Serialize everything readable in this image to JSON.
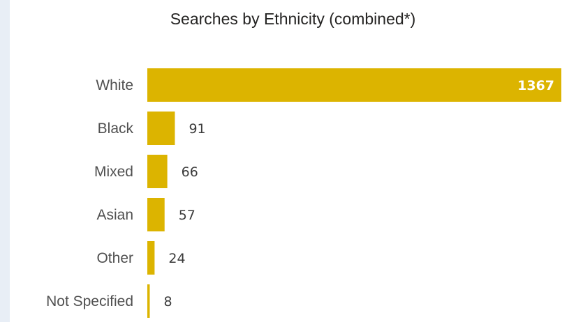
{
  "chart_data": {
    "type": "bar",
    "orientation": "horizontal",
    "title": "Searches by Ethnicity (combined*)",
    "categories": [
      "White",
      "Black",
      "Mixed",
      "Asian",
      "Other",
      "Not Specified"
    ],
    "values": [
      1367,
      91,
      66,
      57,
      24,
      8
    ],
    "xlabel": "",
    "ylabel": "",
    "xlim": [
      0,
      1367
    ],
    "grid": false,
    "legend": "none",
    "data_labels": true,
    "bar_color": "#dcb400"
  }
}
